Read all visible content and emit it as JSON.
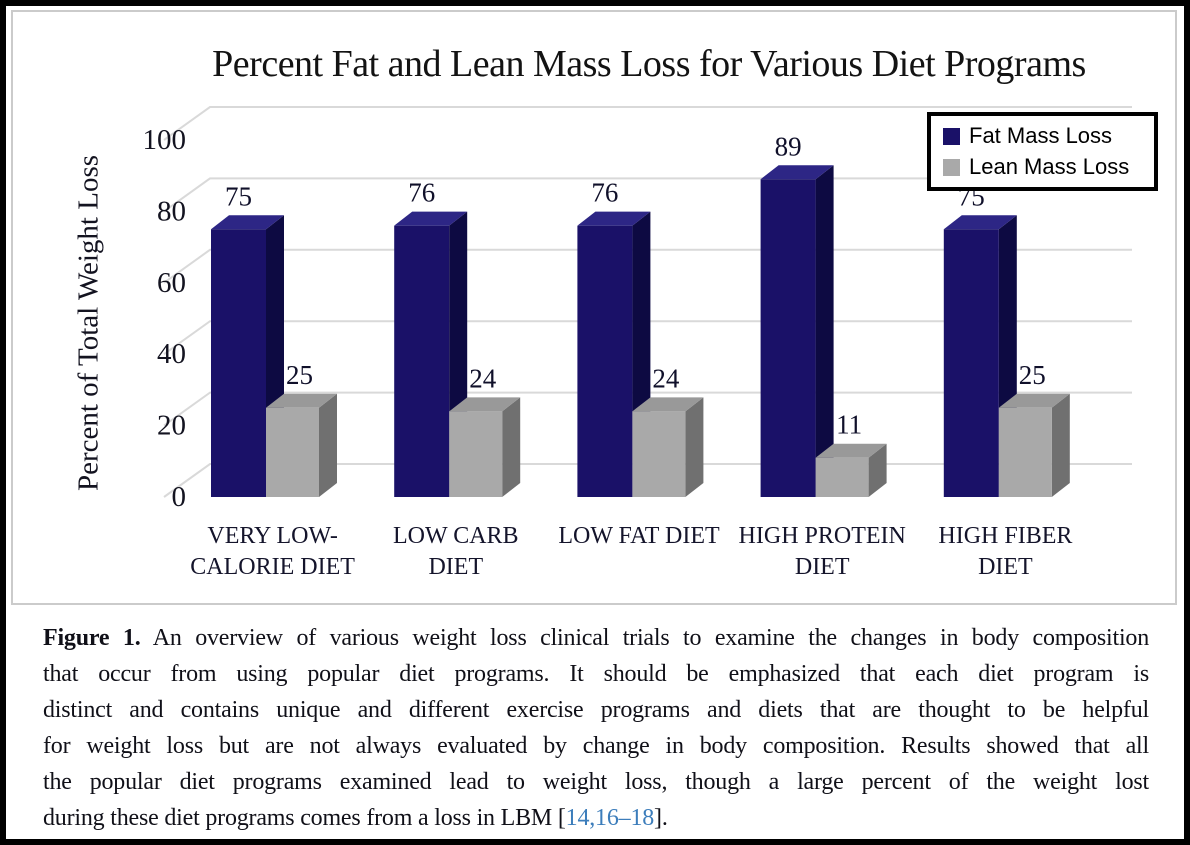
{
  "chart_data": {
    "type": "bar",
    "style": "3d-column",
    "title": "Percent Fat and Lean Mass Loss for Various Diet Programs",
    "xlabel": "",
    "ylabel": "Percent of Total Weight Loss",
    "ylim": [
      0,
      100
    ],
    "yticks": [
      0,
      20,
      40,
      60,
      80,
      100
    ],
    "grid": true,
    "legend_position": "top-right",
    "categories": [
      "VERY LOW-CALORIE DIET",
      "LOW CARB DIET",
      "LOW FAT DIET",
      "HIGH PROTEIN DIET",
      "HIGH FIBER DIET"
    ],
    "category_label_lines": [
      [
        "VERY LOW-",
        "CALORIE DIET"
      ],
      [
        "LOW CARB",
        "DIET"
      ],
      [
        "LOW FAT DIET"
      ],
      [
        "HIGH PROTEIN",
        "DIET"
      ],
      [
        "HIGH FIBER",
        "DIET"
      ]
    ],
    "series": [
      {
        "name": "Fat Mass Loss",
        "values": [
          75,
          76,
          76,
          89,
          75
        ],
        "color": "#1a1168",
        "color_top": "#2d2685",
        "color_side": "#0d0a42"
      },
      {
        "name": "Lean Mass Loss",
        "values": [
          25,
          24,
          24,
          11,
          25
        ],
        "color": "#a9a9a9",
        "color_top": "#999999",
        "color_side": "#707070"
      }
    ],
    "value_labels_shown": true,
    "gridline_color": "#d9d9d9"
  },
  "caption": {
    "label": "Figure 1.",
    "line1_rest": "An overview of various weight loss clinical trials to examine the changes in body composition",
    "line2": "that occur from using popular diet programs.  It should be emphasized that each diet program is",
    "line3": "distinct and contains unique and different exercise programs and diets that are thought to be helpful",
    "line4": "for weight loss but are not always evaluated by change in body composition. Results showed that all",
    "line5": "the popular diet programs examined lead to weight loss, though a large percent of the weight lost",
    "line6_pre": "during these diet programs comes from a loss in LBM [",
    "citation": "14,16–18",
    "line6_post": "].",
    "citation_color": "#3c7dbb"
  }
}
